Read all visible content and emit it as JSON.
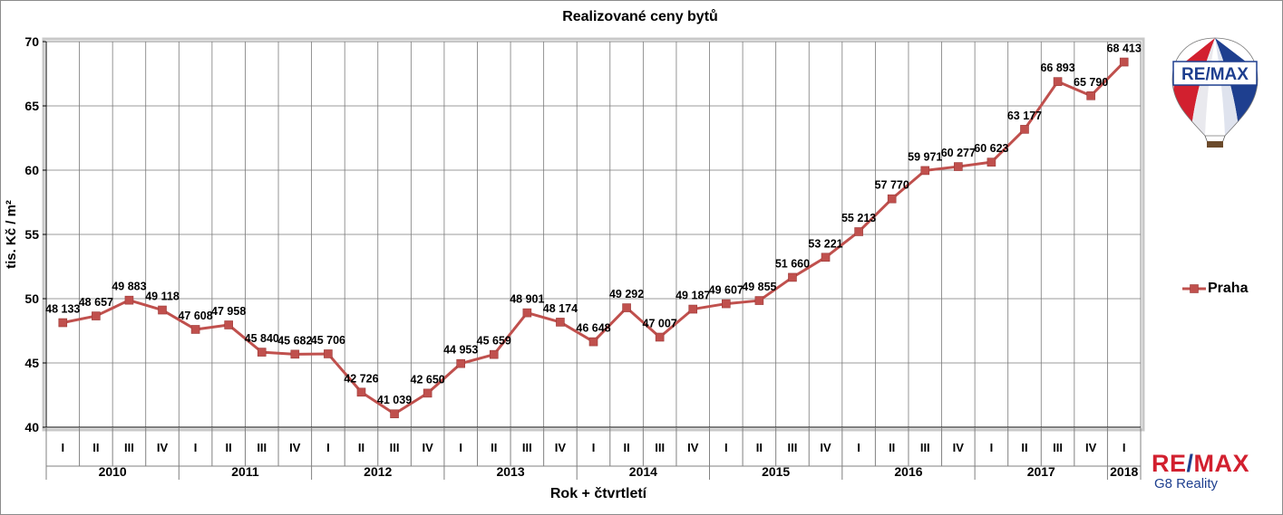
{
  "chart_data": {
    "type": "line",
    "title": "Realizované ceny bytů",
    "xlabel": "Rok + čtvrtletí",
    "ylabel": "tis. Kč / m²",
    "ylim": [
      40,
      70
    ],
    "yticks": [
      40,
      45,
      50,
      55,
      60,
      65,
      70
    ],
    "grid": true,
    "legend_position": "right",
    "quarters": [
      "I",
      "II",
      "III",
      "IV",
      "I",
      "II",
      "III",
      "IV",
      "I",
      "II",
      "III",
      "IV",
      "I",
      "II",
      "III",
      "IV",
      "I",
      "II",
      "III",
      "IV",
      "I",
      "II",
      "III",
      "IV",
      "I",
      "II",
      "III",
      "IV",
      "I",
      "II",
      "III",
      "IV",
      "I"
    ],
    "years": [
      {
        "label": "2010",
        "count": 4
      },
      {
        "label": "2011",
        "count": 4
      },
      {
        "label": "2012",
        "count": 4
      },
      {
        "label": "2013",
        "count": 4
      },
      {
        "label": "2014",
        "count": 4
      },
      {
        "label": "2015",
        "count": 4
      },
      {
        "label": "2016",
        "count": 4
      },
      {
        "label": "2017",
        "count": 4
      },
      {
        "label": "2018",
        "count": 1
      }
    ],
    "series": [
      {
        "name": "Praha",
        "color": "#c0504d",
        "values": [
          48.133,
          48.657,
          49.883,
          49.118,
          47.608,
          47.958,
          45.84,
          45.682,
          45.706,
          42.726,
          41.039,
          42.65,
          44.953,
          45.659,
          48.901,
          48.174,
          46.648,
          49.292,
          47.007,
          49.187,
          49.607,
          49.855,
          51.66,
          53.221,
          55.213,
          57.77,
          59.971,
          60.277,
          60.623,
          63.177,
          66.893,
          65.79,
          68.413
        ],
        "labels": [
          "48 133",
          "48 657",
          "49 883",
          "49 118",
          "47 608",
          "47 958",
          "45 840",
          "45 682",
          "45 706",
          "42 726",
          "41 039",
          "42 650",
          "44 953",
          "45 659",
          "48 901",
          "48 174",
          "46 648",
          "49 292",
          "47 007",
          "49 187",
          "49 607",
          "49 855",
          "51 660",
          "53 221",
          "55 213",
          "57 770",
          "59 971",
          "60 277",
          "60 623",
          "63 177",
          "66 893",
          "65 790",
          "68 413"
        ]
      }
    ]
  },
  "legend": {
    "label": "Praha"
  },
  "branding": {
    "balloon_text": "RE/MAX",
    "brand": "RE/MAX",
    "sub": "G8 Reality"
  }
}
